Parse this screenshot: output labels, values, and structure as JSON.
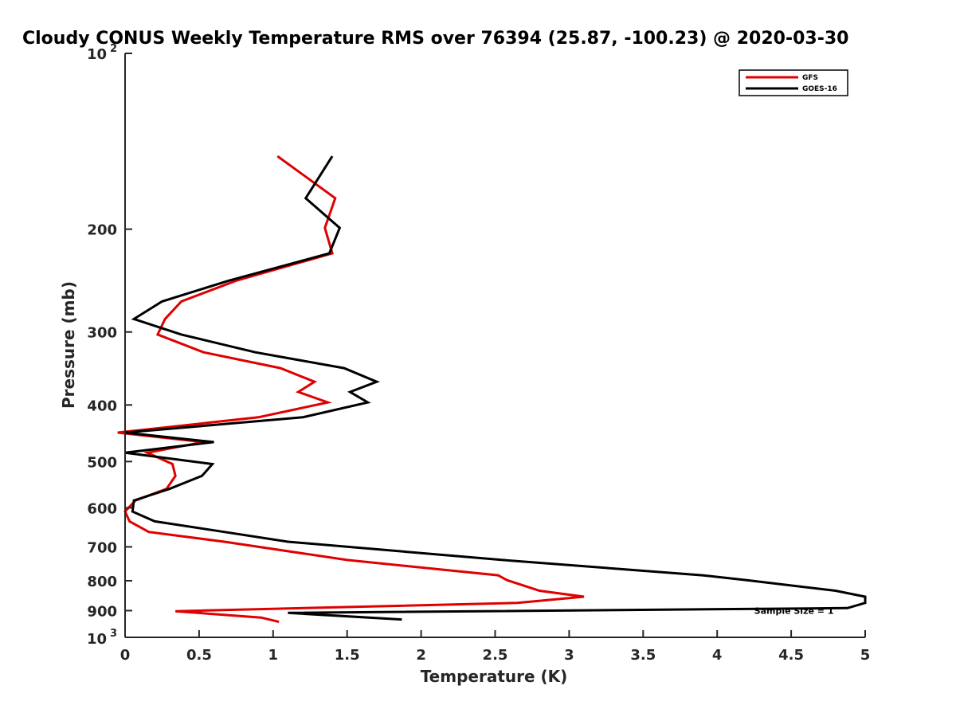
{
  "chart_data": {
    "type": "line",
    "title": "Cloudy CONUS Weekly Temperature RMS over 76394 (25.87, -100.23) @ 2020-03-30",
    "xlabel": "Temperature (K)",
    "ylabel": "Pressure (mb)",
    "xlim": [
      0,
      5
    ],
    "ylim": [
      100,
      1000
    ],
    "y_scale": "log",
    "y_reversed": true,
    "grid": false,
    "legend_position": "top-right",
    "x_ticks": [
      "0",
      "0.5",
      "1",
      "1.5",
      "2",
      "2.5",
      "3",
      "3.5",
      "4",
      "4.5",
      "5"
    ],
    "y_ticks": [
      {
        "label": "200",
        "value": 200
      },
      {
        "label": "300",
        "value": 300
      },
      {
        "label": "400",
        "value": 400
      },
      {
        "label": "500",
        "value": 500
      },
      {
        "label": "600",
        "value": 600
      },
      {
        "label": "700",
        "value": 700
      },
      {
        "label": "800",
        "value": 800
      },
      {
        "label": "900",
        "value": 900
      }
    ],
    "y_tick_top": {
      "base": "10",
      "exp": "2",
      "value": 100
    },
    "y_tick_bottom": {
      "base": "10",
      "exp": "3",
      "value": 1000
    },
    "series": [
      {
        "name": "GFS",
        "color": "#e00000",
        "points": [
          [
            1.03,
            150
          ],
          [
            1.42,
            177
          ],
          [
            1.35,
            199
          ],
          [
            1.4,
            220
          ],
          [
            0.75,
            245
          ],
          [
            0.38,
            266
          ],
          [
            0.27,
            285
          ],
          [
            0.22,
            303
          ],
          [
            0.53,
            325
          ],
          [
            1.05,
            346
          ],
          [
            1.28,
            365
          ],
          [
            1.17,
            380
          ],
          [
            1.37,
            396
          ],
          [
            0.9,
            420
          ],
          [
            -0.05,
            446
          ],
          [
            0.53,
            463
          ],
          [
            0.15,
            483
          ],
          [
            0.32,
            505
          ],
          [
            0.34,
            529
          ],
          [
            0.28,
            557
          ],
          [
            0.07,
            583
          ],
          [
            0.0,
            609
          ],
          [
            0.03,
            633
          ],
          [
            0.16,
            660
          ],
          [
            0.67,
            686
          ],
          [
            1.5,
            737
          ],
          [
            2.52,
            783
          ],
          [
            2.58,
            798
          ],
          [
            2.8,
            832
          ],
          [
            3.1,
            852
          ],
          [
            2.65,
            873
          ],
          [
            0.34,
            902
          ],
          [
            0.92,
            925
          ],
          [
            1.04,
            941
          ]
        ]
      },
      {
        "name": "GOES-16",
        "color": "#000000",
        "points": [
          [
            1.4,
            150
          ],
          [
            1.22,
            177
          ],
          [
            1.45,
            199
          ],
          [
            1.38,
            220
          ],
          [
            0.7,
            245
          ],
          [
            0.25,
            266
          ],
          [
            0.06,
            285
          ],
          [
            0.38,
            303
          ],
          [
            0.88,
            325
          ],
          [
            1.48,
            346
          ],
          [
            1.7,
            365
          ],
          [
            1.52,
            380
          ],
          [
            1.64,
            396
          ],
          [
            1.2,
            420
          ],
          [
            0.0,
            446
          ],
          [
            0.6,
            463
          ],
          [
            0.0,
            483
          ],
          [
            0.59,
            505
          ],
          [
            0.52,
            529
          ],
          [
            0.3,
            557
          ],
          [
            0.06,
            583
          ],
          [
            0.05,
            609
          ],
          [
            0.2,
            633
          ],
          [
            0.67,
            660
          ],
          [
            1.1,
            686
          ],
          [
            2.55,
            737
          ],
          [
            3.9,
            783
          ],
          [
            4.2,
            798
          ],
          [
            4.8,
            832
          ],
          [
            5.0,
            852
          ],
          [
            5.0,
            873
          ],
          [
            4.88,
            891
          ],
          [
            1.1,
            908
          ],
          [
            1.87,
            932
          ]
        ]
      }
    ],
    "annotations": [
      {
        "text": "Sample Size = 1",
        "x": 4.25,
        "y": 900
      }
    ]
  }
}
